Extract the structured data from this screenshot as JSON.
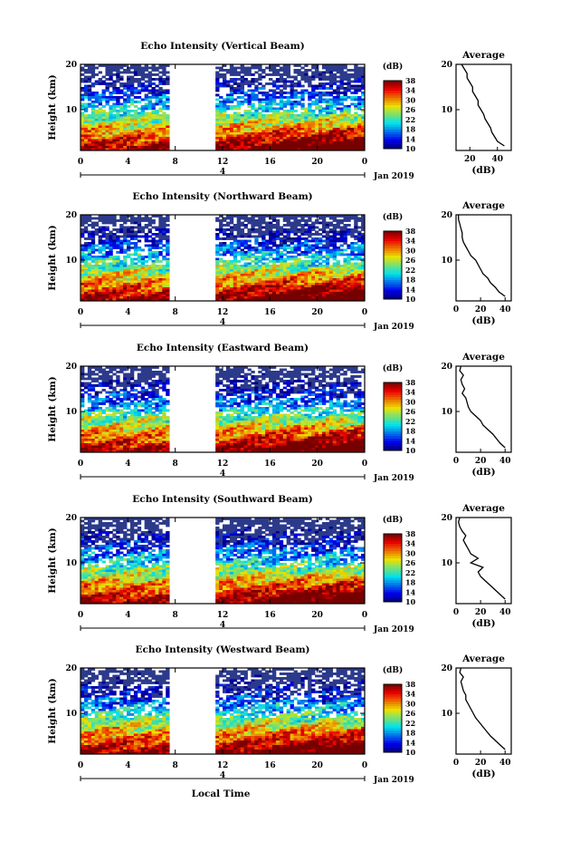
{
  "figure": {
    "xlabel": "Local Time",
    "date_label": "Jan 2019",
    "height_label": "Height (km)",
    "unit_label": "(dB)",
    "avg_title": "Average",
    "day_marker": "4"
  },
  "chart_data": [
    {
      "type": "heatmap",
      "title": "Echo Intensity (Vertical Beam)",
      "xlabel": "Local Time",
      "ylabel": "Height (km)",
      "x_ticks": [
        "0",
        "4",
        "8",
        "12",
        "16",
        "20",
        "0"
      ],
      "y_ticks": [
        "10",
        "20"
      ],
      "xlim": [
        0,
        24
      ],
      "ylim": [
        1,
        20
      ],
      "data_gap_hours": [
        7.5,
        11.2
      ],
      "colorbar": {
        "label": "(dB)",
        "ticks": [
          "10",
          "14",
          "18",
          "22",
          "26",
          "30",
          "34",
          "38"
        ],
        "range": [
          10,
          38
        ]
      },
      "average": {
        "title": "Average",
        "xlabel": "(dB)",
        "x_ticks": [
          "20",
          "40"
        ],
        "xlim": [
          10,
          50
        ],
        "height_km": [
          2,
          3,
          4,
          5,
          6,
          7,
          8,
          9,
          10,
          11,
          12,
          13,
          14,
          15,
          16,
          17,
          18,
          19,
          20
        ],
        "values_db": [
          45,
          40,
          38,
          36,
          35,
          33,
          31,
          30,
          28,
          26,
          26,
          24,
          22,
          22,
          20,
          18,
          18,
          16,
          14
        ]
      }
    },
    {
      "type": "heatmap",
      "title": "Echo Intensity (Northward Beam)",
      "xlabel": "Local Time",
      "ylabel": "Height (km)",
      "x_ticks": [
        "0",
        "4",
        "8",
        "12",
        "16",
        "20",
        "0"
      ],
      "y_ticks": [
        "10",
        "20"
      ],
      "xlim": [
        0,
        24
      ],
      "ylim": [
        1,
        20
      ],
      "data_gap_hours": [
        7.5,
        11.2
      ],
      "colorbar": {
        "label": "(dB)",
        "ticks": [
          "10",
          "14",
          "18",
          "22",
          "26",
          "30",
          "34",
          "38"
        ],
        "range": [
          10,
          38
        ]
      },
      "average": {
        "title": "Average",
        "xlabel": "(dB)",
        "x_ticks": [
          "0",
          "20",
          "40"
        ],
        "xlim": [
          0,
          45
        ],
        "height_km": [
          2,
          3,
          4,
          5,
          6,
          7,
          8,
          9,
          10,
          11,
          12,
          13,
          14,
          15,
          16,
          17,
          18,
          19,
          20
        ],
        "values_db": [
          40,
          35,
          32,
          28,
          26,
          22,
          20,
          18,
          16,
          12,
          10,
          8,
          6,
          5,
          5,
          4,
          3,
          2,
          2
        ]
      }
    },
    {
      "type": "heatmap",
      "title": "Echo Intensity (Eastward Beam)",
      "xlabel": "Local Time",
      "ylabel": "Height (km)",
      "x_ticks": [
        "0",
        "4",
        "8",
        "12",
        "16",
        "20",
        "0"
      ],
      "y_ticks": [
        "10",
        "20"
      ],
      "xlim": [
        0,
        24
      ],
      "ylim": [
        1,
        20
      ],
      "data_gap_hours": [
        7.5,
        11.2
      ],
      "colorbar": {
        "label": "(dB)",
        "ticks": [
          "10",
          "14",
          "18",
          "22",
          "26",
          "30",
          "34",
          "38"
        ],
        "range": [
          10,
          38
        ]
      },
      "average": {
        "title": "Average",
        "xlabel": "(dB)",
        "x_ticks": [
          "0",
          "20",
          "40"
        ],
        "xlim": [
          0,
          45
        ],
        "height_km": [
          2,
          3,
          4,
          5,
          6,
          7,
          8,
          9,
          10,
          11,
          12,
          13,
          14,
          15,
          16,
          17,
          18,
          19,
          20
        ],
        "values_db": [
          40,
          36,
          33,
          30,
          26,
          22,
          20,
          16,
          12,
          10,
          9,
          8,
          5,
          7,
          5,
          4,
          6,
          3,
          4
        ]
      }
    },
    {
      "type": "heatmap",
      "title": "Echo Intensity (Southward Beam)",
      "xlabel": "Local Time",
      "ylabel": "Height (km)",
      "x_ticks": [
        "0",
        "4",
        "8",
        "12",
        "16",
        "20",
        "0"
      ],
      "y_ticks": [
        "10",
        "20"
      ],
      "xlim": [
        0,
        24
      ],
      "ylim": [
        1,
        20
      ],
      "data_gap_hours": [
        7.5,
        11.2
      ],
      "colorbar": {
        "label": "(dB)",
        "ticks": [
          "10",
          "14",
          "18",
          "22",
          "26",
          "30",
          "34",
          "38"
        ],
        "range": [
          10,
          38
        ]
      },
      "average": {
        "title": "Average",
        "xlabel": "(dB)",
        "x_ticks": [
          "0",
          "20",
          "40"
        ],
        "xlim": [
          0,
          45
        ],
        "height_km": [
          2,
          3,
          4,
          5,
          6,
          7,
          8,
          9,
          10,
          11,
          12,
          13,
          14,
          15,
          16,
          17,
          18,
          19,
          20
        ],
        "values_db": [
          40,
          36,
          32,
          28,
          24,
          20,
          18,
          22,
          12,
          18,
          12,
          10,
          8,
          6,
          8,
          5,
          3,
          2,
          3
        ]
      }
    },
    {
      "type": "heatmap",
      "title": "Echo Intensity (Westward Beam)",
      "xlabel": "Local Time",
      "ylabel": "Height (km)",
      "x_ticks": [
        "0",
        "4",
        "8",
        "12",
        "16",
        "20",
        "0"
      ],
      "y_ticks": [
        "10",
        "20"
      ],
      "xlim": [
        0,
        24
      ],
      "ylim": [
        1,
        20
      ],
      "data_gap_hours": [
        7.5,
        11.2
      ],
      "colorbar": {
        "label": "(dB)",
        "ticks": [
          "10",
          "14",
          "18",
          "22",
          "26",
          "30",
          "34",
          "38"
        ],
        "range": [
          10,
          38
        ]
      },
      "average": {
        "title": "Average",
        "xlabel": "(dB)",
        "x_ticks": [
          "0",
          "20",
          "40"
        ],
        "xlim": [
          0,
          45
        ],
        "height_km": [
          2,
          3,
          4,
          5,
          6,
          7,
          8,
          9,
          10,
          11,
          12,
          13,
          14,
          15,
          16,
          17,
          18,
          19,
          20
        ],
        "values_db": [
          40,
          36,
          32,
          28,
          25,
          22,
          19,
          16,
          14,
          12,
          10,
          8,
          8,
          6,
          5,
          4,
          6,
          3,
          4
        ]
      }
    }
  ]
}
